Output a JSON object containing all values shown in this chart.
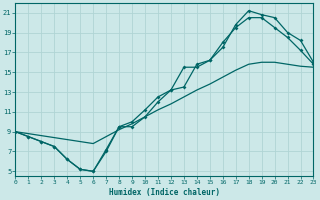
{
  "xlabel": "Humidex (Indice chaleur)",
  "xlim": [
    0,
    23
  ],
  "ylim": [
    4.5,
    22
  ],
  "xticks": [
    0,
    1,
    2,
    3,
    4,
    5,
    6,
    7,
    8,
    9,
    10,
    11,
    12,
    13,
    14,
    15,
    16,
    17,
    18,
    19,
    20,
    21,
    22,
    23
  ],
  "yticks": [
    5,
    7,
    9,
    11,
    13,
    15,
    17,
    19,
    21
  ],
  "bg_color": "#cce8e8",
  "line_color": "#006666",
  "grid_color": "#b0d4d4",
  "curve1_x": [
    0,
    1,
    2,
    3,
    4,
    5,
    6,
    7,
    8,
    9,
    10,
    11,
    12,
    13,
    14,
    15,
    16,
    17,
    18,
    19,
    20,
    21,
    22,
    23
  ],
  "curve1_y": [
    9,
    8.5,
    8,
    7.5,
    6.2,
    5.2,
    5.0,
    7.0,
    9.5,
    9.5,
    10.5,
    12.0,
    13.2,
    15.5,
    15.5,
    16.2,
    18.0,
    19.5,
    20.5,
    20.5,
    19.5,
    18.5,
    17.2,
    15.8
  ],
  "curve2_x": [
    0,
    1,
    2,
    3,
    4,
    5,
    6,
    7,
    8,
    9,
    10,
    11,
    12,
    13,
    14,
    15,
    16,
    17,
    18,
    19,
    20,
    21,
    22,
    23
  ],
  "curve2_y": [
    9,
    8.5,
    8,
    7.5,
    6.2,
    5.2,
    5.0,
    7.2,
    9.5,
    10.0,
    11.2,
    12.5,
    13.2,
    13.5,
    15.8,
    16.2,
    17.5,
    19.8,
    21.2,
    20.8,
    20.5,
    19.0,
    18.2,
    16.0
  ],
  "curve3_x": [
    0,
    1,
    2,
    3,
    4,
    5,
    6,
    7,
    8,
    9,
    10,
    11,
    12,
    13,
    14,
    15,
    16,
    17,
    18,
    19,
    20,
    21,
    22,
    23
  ],
  "curve3_y": [
    9.0,
    8.8,
    8.6,
    8.4,
    8.2,
    8.0,
    7.8,
    8.5,
    9.2,
    9.8,
    10.5,
    11.2,
    11.8,
    12.5,
    13.2,
    13.8,
    14.5,
    15.2,
    15.8,
    16.0,
    16.0,
    15.8,
    15.6,
    15.5
  ]
}
